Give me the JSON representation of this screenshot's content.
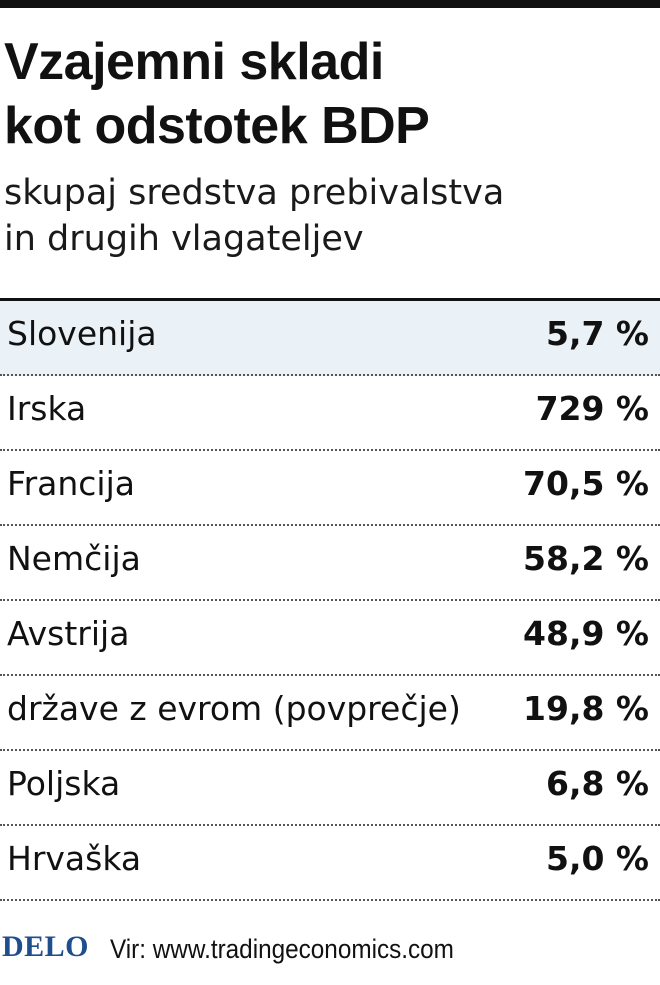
{
  "chart_data": {
    "type": "table",
    "title_lines": [
      "Vzajemni skladi",
      "kot odstotek BDP"
    ],
    "subtitle_lines": [
      "skupaj sredstva prebivalstva",
      "in drugih vlagateljev"
    ],
    "rows": [
      {
        "label": "Slovenija",
        "value": 5.7,
        "display": "5,7 %",
        "highlight": true
      },
      {
        "label": "Irska",
        "value": 729,
        "display": "729 %",
        "highlight": false
      },
      {
        "label": "Francija",
        "value": 70.5,
        "display": "70,5 %",
        "highlight": false
      },
      {
        "label": "Nemčija",
        "value": 58.2,
        "display": "58,2 %",
        "highlight": false
      },
      {
        "label": "Avstrija",
        "value": 48.9,
        "display": "48,9 %",
        "highlight": false
      },
      {
        "label": "države z evrom (povprečje)",
        "value": 19.8,
        "display": "19,8 %",
        "highlight": false
      },
      {
        "label": "Poljska",
        "value": 6.8,
        "display": "6,8 %",
        "highlight": false
      },
      {
        "label": "Hrvaška",
        "value": 5.0,
        "display": "5,0 %",
        "highlight": false
      }
    ],
    "unit": "%"
  },
  "footer": {
    "logo_text": "DELO",
    "source": "Vir: www.tradingeconomics.com"
  },
  "colors": {
    "highlight_row": "#eaf2f8",
    "logo": "#1f4e8c",
    "text": "#111111"
  }
}
